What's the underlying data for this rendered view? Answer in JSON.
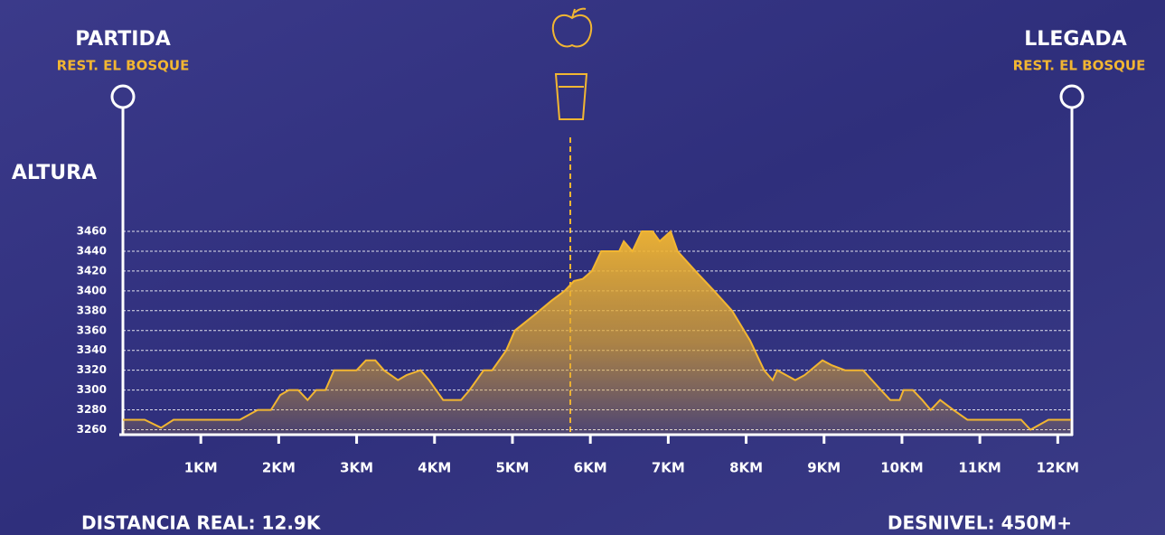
{
  "chart_data": {
    "type": "area",
    "start_title": "PARTIDA",
    "start_subtitle": "REST. EL BOSQUE",
    "finish_title": "LLEGADA",
    "finish_subtitle": "REST. EL BOSQUE",
    "y_label": "ALTURA",
    "footer_left": "DISTANCIA REAL: 12.9K",
    "footer_right": "DESNIVEL: 450M+",
    "color": "#f2b632",
    "xlim": [
      0,
      12.17
    ],
    "ylim": [
      3255,
      3460
    ],
    "xticks": [
      {
        "value": 1,
        "label": "1KM"
      },
      {
        "value": 2,
        "label": "2KM"
      },
      {
        "value": 3,
        "label": "3KM"
      },
      {
        "value": 4,
        "label": "4KM"
      },
      {
        "value": 5,
        "label": "5KM"
      },
      {
        "value": 6,
        "label": "6KM"
      },
      {
        "value": 7,
        "label": "7KM"
      },
      {
        "value": 8,
        "label": "8KM"
      },
      {
        "value": 9,
        "label": "9KM"
      },
      {
        "value": 10,
        "label": "10KM"
      },
      {
        "value": 11,
        "label": "11KM"
      },
      {
        "value": 12,
        "label": "12KM"
      }
    ],
    "yticks": [
      3260,
      3280,
      3300,
      3320,
      3340,
      3360,
      3380,
      3400,
      3420,
      3440,
      3460
    ],
    "grid": true,
    "x": [
      0,
      0.28,
      0.49,
      0.65,
      1.5,
      1.73,
      1.9,
      2.02,
      2.13,
      2.25,
      2.37,
      2.48,
      2.6,
      2.71,
      3.0,
      3.12,
      3.24,
      3.35,
      3.53,
      3.64,
      3.82,
      3.93,
      4.11,
      4.34,
      4.45,
      4.63,
      4.74,
      4.92,
      5.03,
      5.27,
      5.5,
      5.67,
      5.79,
      5.9,
      6.02,
      6.14,
      6.37,
      6.43,
      6.54,
      6.66,
      6.8,
      6.89,
      7.03,
      7.12,
      7.35,
      7.59,
      7.82,
      8.05,
      8.23,
      8.34,
      8.4,
      8.63,
      8.75,
      8.98,
      9.1,
      9.27,
      9.5,
      9.73,
      9.85,
      9.97,
      10.02,
      10.14,
      10.26,
      10.37,
      10.49,
      10.66,
      10.84,
      11.53,
      11.65,
      11.88,
      12.17
    ],
    "values": [
      3270,
      3270,
      3262,
      3270,
      3270,
      3280,
      3280,
      3295,
      3300,
      3300,
      3290,
      3300,
      3300,
      3320,
      3320,
      3330,
      3330,
      3320,
      3310,
      3315,
      3320,
      3310,
      3290,
      3290,
      3300,
      3320,
      3320,
      3340,
      3360,
      3375,
      3390,
      3400,
      3410,
      3412,
      3420,
      3440,
      3440,
      3450,
      3440,
      3460,
      3460,
      3450,
      3460,
      3440,
      3420,
      3400,
      3380,
      3350,
      3320,
      3310,
      3320,
      3310,
      3315,
      3330,
      3325,
      3320,
      3320,
      3300,
      3290,
      3290,
      3300,
      3300,
      3290,
      3280,
      3290,
      3280,
      3270,
      3270,
      3260,
      3270,
      3270
    ]
  }
}
